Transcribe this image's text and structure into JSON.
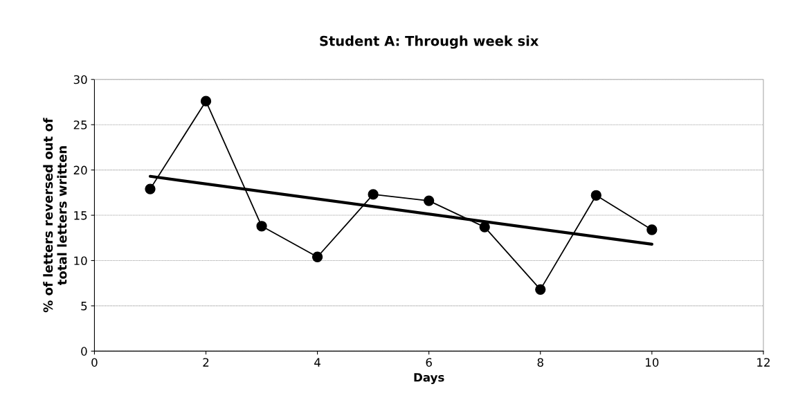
{
  "chart_data": {
    "type": "line",
    "title": "Student A: Through week six",
    "xlabel": "Days",
    "ylabel": "% of letters reversed out of\ntotal letters written",
    "series": [
      {
        "color": "#000000",
        "marker": "circle",
        "x": [
          1,
          2,
          3,
          4,
          5,
          6,
          7,
          8,
          9,
          10
        ],
        "values": [
          17.9,
          27.6,
          13.8,
          10.4,
          17.3,
          16.6,
          13.7,
          6.8,
          17.2,
          13.4
        ]
      },
      {
        "color": "#000000",
        "marker": "none",
        "x": [
          1,
          10
        ],
        "values": [
          19.3,
          11.8
        ]
      }
    ],
    "xlim": [
      0,
      12
    ],
    "xticks": [
      0,
      2,
      4,
      6,
      8,
      10,
      12
    ],
    "ylim": [
      0,
      30
    ],
    "yticks": [
      0,
      5,
      10,
      15,
      20,
      25,
      30
    ],
    "grid": "y",
    "legend": false
  }
}
